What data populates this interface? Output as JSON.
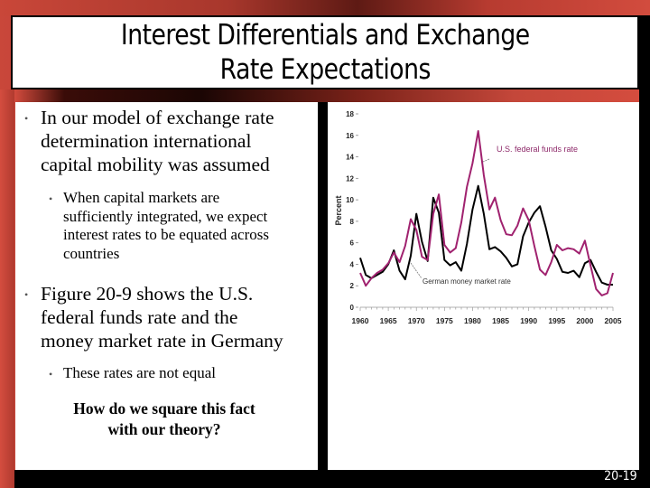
{
  "slide": {
    "title": "Interest Differentials and Exchange Rate Expectations",
    "title_line1": "Interest Differentials and Exchange",
    "title_line2": "Rate Expectations",
    "slide_number": "20-19",
    "colors": {
      "frame_red": "#c9473a",
      "us_series": "#a0226f",
      "german_series": "#000000",
      "panel_bg": "#ffffff"
    }
  },
  "body": {
    "bullets": [
      {
        "level": 1,
        "text": "In our model of exchange rate determination international capital mobility was assumed",
        "lines": [
          "In our model of exchange rate",
          "determination international",
          "capital mobility was assumed"
        ]
      },
      {
        "level": 2,
        "text": "When capital markets are sufficiently integrated, we expect interest rates to be equated across countries",
        "lines": [
          "When capital markets are",
          "sufficiently integrated, we expect",
          "interest rates to be equated across",
          "countries"
        ]
      },
      {
        "level": 1,
        "text": "Figure 20-9 shows the U.S. federal funds rate and the money market rate in Germany",
        "lines": [
          "Figure 20-9 shows the U.S.",
          "federal funds rate and the",
          "money market rate in Germany"
        ]
      },
      {
        "level": 2,
        "text": "These rates are not equal",
        "lines": [
          "These rates are not equal"
        ]
      }
    ],
    "question_lines": [
      "How do we square this fact",
      "with our theory?"
    ]
  },
  "chart_data": {
    "type": "line",
    "title": "",
    "xlabel": "",
    "ylabel": "Percent",
    "xlim": [
      1960,
      2005
    ],
    "ylim": [
      0,
      18
    ],
    "x_ticks": [
      "1960",
      "1965",
      "1970",
      "1975",
      "1980",
      "1985",
      "1990",
      "1995",
      "2000",
      "2005"
    ],
    "y_ticks": [
      "0",
      "2",
      "4",
      "6",
      "8",
      "10",
      "12",
      "14",
      "16",
      "18"
    ],
    "grid": false,
    "legend_position": "inline annotations",
    "annotations": [
      "U.S. federal funds rate",
      "German money market rate"
    ],
    "x": [
      1960,
      1961,
      1962,
      1963,
      1964,
      1965,
      1966,
      1967,
      1968,
      1969,
      1970,
      1971,
      1972,
      1973,
      1974,
      1975,
      1976,
      1977,
      1978,
      1979,
      1980,
      1981,
      1982,
      1983,
      1984,
      1985,
      1986,
      1987,
      1988,
      1989,
      1990,
      1991,
      1992,
      1993,
      1994,
      1995,
      1996,
      1997,
      1998,
      1999,
      2000,
      2001,
      2002,
      2003,
      2004,
      2005
    ],
    "series": [
      {
        "name": "U.S. federal funds rate",
        "color": "#a0226f",
        "values": [
          3.2,
          2.0,
          2.7,
          3.2,
          3.5,
          4.1,
          5.1,
          4.2,
          5.7,
          8.2,
          7.2,
          4.7,
          4.4,
          8.7,
          10.5,
          5.8,
          5.1,
          5.5,
          7.9,
          11.2,
          13.4,
          16.4,
          12.3,
          9.1,
          10.2,
          8.1,
          6.8,
          6.7,
          7.6,
          9.2,
          8.1,
          5.7,
          3.5,
          3.0,
          4.2,
          5.8,
          5.3,
          5.5,
          5.4,
          5.0,
          6.2,
          3.9,
          1.7,
          1.1,
          1.3,
          3.2
        ]
      },
      {
        "name": "German money market rate",
        "color": "#000000",
        "values": [
          4.6,
          3.0,
          2.7,
          3.0,
          3.3,
          4.0,
          5.3,
          3.4,
          2.6,
          4.8,
          8.7,
          6.1,
          4.3,
          10.2,
          8.8,
          4.4,
          3.9,
          4.2,
          3.4,
          5.9,
          9.1,
          11.3,
          8.7,
          5.4,
          5.6,
          5.2,
          4.6,
          3.8,
          4.0,
          6.6,
          7.9,
          8.8,
          9.4,
          7.5,
          5.3,
          4.5,
          3.3,
          3.2,
          3.4,
          2.8,
          4.1,
          4.4,
          3.3,
          2.3,
          2.1,
          2.1
        ]
      }
    ]
  }
}
